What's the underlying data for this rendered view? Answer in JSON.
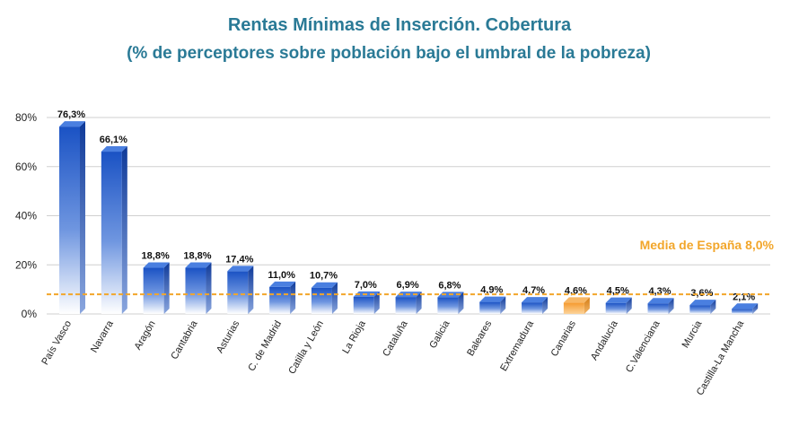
{
  "title_line1": "Rentas Mínimas de Inserción. Cobertura",
  "title_line2": "(% de perceptores sobre población bajo el umbral de la pobreza)",
  "chart_data": {
    "type": "bar",
    "title": "Rentas Mínimas de Inserción. Cobertura (% de perceptores sobre población bajo el umbral de la pobreza)",
    "xlabel": "",
    "ylabel": "",
    "ylim": [
      0,
      80
    ],
    "yticks": [
      0,
      20,
      40,
      60,
      80
    ],
    "ytick_labels": [
      "0%",
      "20%",
      "40%",
      "60%",
      "80%"
    ],
    "grid": true,
    "categories": [
      "País Vasco",
      "Navarra",
      "Aragón",
      "Cantabria",
      "Asturias",
      "C. de Madrid",
      "Catilla y León",
      "La Rioja",
      "Cataluña",
      "Galicia",
      "Baleares",
      "Extremadura",
      "Canarias",
      "Andalucía",
      "C.Valenciana",
      "Murcia",
      "Castilla-La Mancha"
    ],
    "values": [
      76.3,
      66.1,
      18.8,
      18.8,
      17.4,
      11.0,
      10.7,
      7.0,
      6.9,
      6.8,
      4.9,
      4.7,
      4.6,
      4.5,
      4.3,
      3.6,
      2.1
    ],
    "value_labels": [
      "76,3%",
      "66,1%",
      "18,8%",
      "18,8%",
      "17,4%",
      "11,0%",
      "10,7%",
      "7,0%",
      "6,9%",
      "6,8%",
      "4,9%",
      "4,7%",
      "4,6%",
      "4,5%",
      "4,3%",
      "3,6%",
      "2,1%"
    ],
    "highlight_category": "Canarias",
    "average_line": {
      "value": 8.0,
      "label": "Media de España 8,0%"
    },
    "colors": {
      "bar_top": "#1d57c7",
      "bar_bottom": "#ffffff",
      "highlight_top": "#f7a23a",
      "highlight_bottom": "#fbd08f",
      "average": "#f2a62a",
      "title": "#2a7a96",
      "grid": "#cfcfcf"
    }
  }
}
